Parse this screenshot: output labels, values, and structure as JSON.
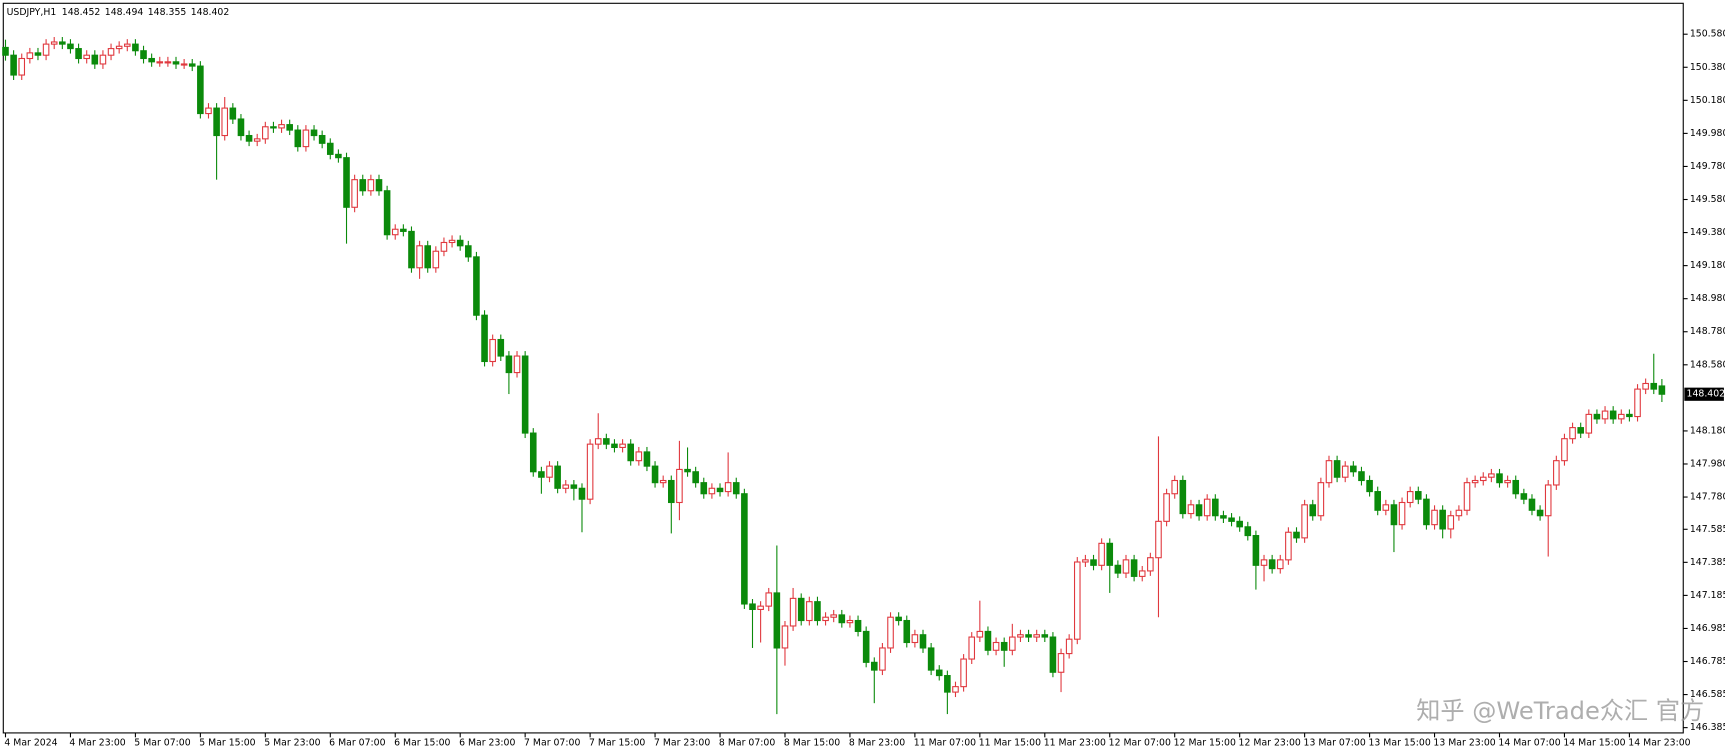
{
  "chart_data": {
    "type": "candlestick",
    "symbol": "USDJPY,H1",
    "watermark": "知乎 @WeTrade众汇 官方",
    "up_color": "#e0383e",
    "down_color": "#0b8a0b",
    "grid": false,
    "categories": [
      "4 Mar 2024",
      null,
      null,
      null,
      null,
      null,
      null,
      null,
      "4 Mar 23:00",
      null,
      null,
      null,
      null,
      null,
      null,
      null,
      "5 Mar 07:00",
      null,
      null,
      null,
      null,
      null,
      null,
      null,
      "5 Mar 15:00",
      null,
      null,
      null,
      null,
      null,
      null,
      null,
      "5 Mar 23:00",
      null,
      null,
      null,
      null,
      null,
      null,
      null,
      "6 Mar 07:00",
      null,
      null,
      null,
      null,
      null,
      null,
      null,
      "6 Mar 15:00",
      null,
      null,
      null,
      null,
      null,
      null,
      null,
      "6 Mar 23:00",
      null,
      null,
      null,
      null,
      null,
      null,
      null,
      "7 Mar 07:00",
      null,
      null,
      null,
      null,
      null,
      null,
      null,
      "7 Mar 15:00",
      null,
      null,
      null,
      null,
      null,
      null,
      null,
      "7 Mar 23:00",
      null,
      null,
      null,
      null,
      null,
      null,
      null,
      "8 Mar 07:00",
      null,
      null,
      null,
      null,
      null,
      null,
      null,
      "8 Mar 15:00",
      null,
      null,
      null,
      null,
      null,
      null,
      null,
      "8 Mar 23:00",
      null,
      null,
      null,
      null,
      null,
      null,
      null,
      "11 Mar 07:00",
      null,
      null,
      null,
      null,
      null,
      null,
      null,
      "11 Mar 15:00",
      null,
      null,
      null,
      null,
      null,
      null,
      null,
      "11 Mar 23:00",
      null,
      null,
      null,
      null,
      null,
      null,
      null,
      "12 Mar 07:00",
      null,
      null,
      null,
      null,
      null,
      null,
      null,
      "12 Mar 15:00",
      null,
      null,
      null,
      null,
      null,
      null,
      null,
      "12 Mar 23:00",
      null,
      null,
      null,
      null,
      null,
      null,
      null,
      "13 Mar 07:00",
      null,
      null,
      null,
      null,
      null,
      null,
      null,
      "13 Mar 15:00",
      null,
      null,
      null,
      null,
      null,
      null,
      null,
      "13 Mar 23:00",
      null,
      null,
      null,
      null,
      null,
      null,
      null,
      "14 Mar 07:00",
      null,
      null,
      null,
      null,
      null,
      null,
      null,
      "14 Mar 15:00",
      null,
      null,
      null,
      null,
      null,
      null,
      null,
      "14 Mar 23:00",
      null,
      null,
      null,
      null
    ],
    "open": [
      150.5,
      150.453,
      150.333,
      150.433,
      150.467,
      150.453,
      150.52,
      150.533,
      150.52,
      150.493,
      150.433,
      150.453,
      150.4,
      150.453,
      150.493,
      150.507,
      150.52,
      150.48,
      150.433,
      150.413,
      150.413,
      150.413,
      150.4,
      150.4,
      150.387,
      150.1,
      150.133,
      149.967,
      150.133,
      150.067,
      149.967,
      149.933,
      149.947,
      150.02,
      150.013,
      150.033,
      150.0,
      149.9,
      150.0,
      149.967,
      149.92,
      149.853,
      149.833,
      149.533,
      149.7,
      149.633,
      149.7,
      149.633,
      149.367,
      149.4,
      149.387,
      149.167,
      149.3,
      149.167,
      149.267,
      149.32,
      149.333,
      149.3,
      149.233,
      148.88,
      148.6,
      148.733,
      148.633,
      148.533,
      148.633,
      148.167,
      147.933,
      147.9,
      147.967,
      147.833,
      147.853,
      147.833,
      147.767,
      148.1,
      148.133,
      148.1,
      148.08,
      148.1,
      148.0,
      148.053,
      147.967,
      147.867,
      147.88,
      147.747,
      147.947,
      147.933,
      147.867,
      147.8,
      147.833,
      147.813,
      147.867,
      147.8,
      147.133,
      147.1,
      147.12,
      147.2,
      146.867,
      147.0,
      147.167,
      147.033,
      147.147,
      147.033,
      147.053,
      147.067,
      147.02,
      147.033,
      146.967,
      146.78,
      146.733,
      146.867,
      147.053,
      147.033,
      146.9,
      146.947,
      146.867,
      146.733,
      146.7,
      146.6,
      146.633,
      146.8,
      146.933,
      146.967,
      146.853,
      146.9,
      146.853,
      146.933,
      146.947,
      146.933,
      146.947,
      146.933,
      146.72,
      146.833,
      146.92,
      147.387,
      147.4,
      147.367,
      147.5,
      147.367,
      147.32,
      147.4,
      147.3,
      147.333,
      147.413,
      147.633,
      147.8,
      147.88,
      147.68,
      147.733,
      147.667,
      147.767,
      147.667,
      147.653,
      147.633,
      147.6,
      147.547,
      147.367,
      147.4,
      147.347,
      147.4,
      147.567,
      147.533,
      147.733,
      147.667,
      147.867,
      148.0,
      147.9,
      147.967,
      147.933,
      147.88,
      147.813,
      147.7,
      147.733,
      147.613,
      147.747,
      147.813,
      147.767,
      147.613,
      147.7,
      147.587,
      147.667,
      147.7,
      147.867,
      147.88,
      147.9,
      147.92,
      147.867,
      147.88,
      147.8,
      147.767,
      147.7,
      147.667,
      147.853,
      148.0,
      148.133,
      148.2,
      148.167,
      148.28,
      148.253,
      148.3,
      148.253,
      148.28,
      148.267,
      148.433,
      148.467,
      148.452
    ],
    "high": [
      150.547,
      150.483,
      150.463,
      150.497,
      150.497,
      150.55,
      150.563,
      150.563,
      150.55,
      150.523,
      150.483,
      150.483,
      150.483,
      150.523,
      150.537,
      150.55,
      150.55,
      150.51,
      150.463,
      150.443,
      150.443,
      150.443,
      150.43,
      150.43,
      150.417,
      150.163,
      150.163,
      150.2,
      150.163,
      150.097,
      149.997,
      149.977,
      150.05,
      150.05,
      150.063,
      150.063,
      150.03,
      150.03,
      150.03,
      149.997,
      149.95,
      149.883,
      149.863,
      149.73,
      149.73,
      149.73,
      149.73,
      149.663,
      149.43,
      149.43,
      149.417,
      149.33,
      149.33,
      149.297,
      149.35,
      149.363,
      149.363,
      149.33,
      149.263,
      148.91,
      148.763,
      148.763,
      148.663,
      148.663,
      148.663,
      148.197,
      147.963,
      147.997,
      147.997,
      147.883,
      147.883,
      147.863,
      148.13,
      148.287,
      148.163,
      148.13,
      148.13,
      148.13,
      148.083,
      148.083,
      147.997,
      147.91,
      147.91,
      148.12,
      148.08,
      147.963,
      147.897,
      147.863,
      147.863,
      148.05,
      147.897,
      147.83,
      147.163,
      147.15,
      147.23,
      147.487,
      147.03,
      147.23,
      147.197,
      147.177,
      147.177,
      147.083,
      147.097,
      147.097,
      147.063,
      147.063,
      146.997,
      146.81,
      146.897,
      147.083,
      147.083,
      147.063,
      146.977,
      146.977,
      146.897,
      146.763,
      146.73,
      146.663,
      146.83,
      146.963,
      147.153,
      146.997,
      146.93,
      146.93,
      147.013,
      146.977,
      146.977,
      146.977,
      146.977,
      146.963,
      146.863,
      146.95,
      147.417,
      147.43,
      147.43,
      147.53,
      147.53,
      147.397,
      147.43,
      147.43,
      147.363,
      147.443,
      148.147,
      147.83,
      147.91,
      147.91,
      147.763,
      147.763,
      147.797,
      147.797,
      147.697,
      147.683,
      147.663,
      147.63,
      147.577,
      147.43,
      147.43,
      147.43,
      147.597,
      147.597,
      147.763,
      147.763,
      147.897,
      148.03,
      148.03,
      147.997,
      147.997,
      147.963,
      147.91,
      147.843,
      147.763,
      147.763,
      147.777,
      147.843,
      147.843,
      147.797,
      147.73,
      147.73,
      147.697,
      147.73,
      147.897,
      147.91,
      147.93,
      147.95,
      147.95,
      147.91,
      147.91,
      147.83,
      147.797,
      147.73,
      147.883,
      148.03,
      148.163,
      148.23,
      148.23,
      148.31,
      148.31,
      148.33,
      148.33,
      148.31,
      148.31,
      148.463,
      148.497,
      148.647,
      148.494
    ],
    "low": [
      150.42,
      150.303,
      150.303,
      150.403,
      150.423,
      150.423,
      150.49,
      150.49,
      150.463,
      150.403,
      150.403,
      150.37,
      150.37,
      150.423,
      150.463,
      150.477,
      150.45,
      150.403,
      150.383,
      150.383,
      150.383,
      150.37,
      150.37,
      150.357,
      150.07,
      150.07,
      149.7,
      149.937,
      150.037,
      149.937,
      149.903,
      149.903,
      149.917,
      149.983,
      149.983,
      149.97,
      149.87,
      149.87,
      149.937,
      149.89,
      149.823,
      149.803,
      149.313,
      149.503,
      149.603,
      149.603,
      149.603,
      149.337,
      149.337,
      149.357,
      149.137,
      149.1,
      149.137,
      149.137,
      149.237,
      149.29,
      149.27,
      149.203,
      148.85,
      148.57,
      148.57,
      148.603,
      148.403,
      148.503,
      148.137,
      147.903,
      147.8,
      147.87,
      147.803,
      147.803,
      147.76,
      147.567,
      147.737,
      148.07,
      148.07,
      148.05,
      148.05,
      147.97,
      147.97,
      147.937,
      147.837,
      147.837,
      147.56,
      147.64,
      147.903,
      147.837,
      147.77,
      147.77,
      147.783,
      147.783,
      147.77,
      147.103,
      146.867,
      146.9,
      147.09,
      146.467,
      146.76,
      146.97,
      147.003,
      147.003,
      147.003,
      147.003,
      147.023,
      146.99,
      146.99,
      146.937,
      146.75,
      146.533,
      146.703,
      146.837,
      147.003,
      146.87,
      146.87,
      146.837,
      146.703,
      146.67,
      146.467,
      146.57,
      146.603,
      146.77,
      146.903,
      146.823,
      146.823,
      146.753,
      146.823,
      146.903,
      146.903,
      146.903,
      146.903,
      146.69,
      146.6,
      146.803,
      146.89,
      147.357,
      147.337,
      147.337,
      147.2,
      147.29,
      147.29,
      147.27,
      147.27,
      147.303,
      147.053,
      147.603,
      147.77,
      147.65,
      147.65,
      147.637,
      147.637,
      147.637,
      147.623,
      147.603,
      147.57,
      147.517,
      147.22,
      147.27,
      147.317,
      147.317,
      147.37,
      147.503,
      147.503,
      147.637,
      147.637,
      147.837,
      147.87,
      147.87,
      147.903,
      147.85,
      147.783,
      147.67,
      147.67,
      147.447,
      147.583,
      147.717,
      147.737,
      147.583,
      147.583,
      147.53,
      147.53,
      147.637,
      147.67,
      147.837,
      147.85,
      147.87,
      147.837,
      147.837,
      147.77,
      147.737,
      147.67,
      147.637,
      147.42,
      147.823,
      147.97,
      148.103,
      148.137,
      148.137,
      148.223,
      148.223,
      148.223,
      148.223,
      148.237,
      148.237,
      148.403,
      148.403,
      148.355
    ],
    "close": [
      150.453,
      150.333,
      150.433,
      150.467,
      150.453,
      150.52,
      150.533,
      150.52,
      150.493,
      150.433,
      150.453,
      150.4,
      150.453,
      150.493,
      150.507,
      150.52,
      150.48,
      150.433,
      150.413,
      150.413,
      150.413,
      150.4,
      150.4,
      150.387,
      150.1,
      150.133,
      149.967,
      150.133,
      150.067,
      149.967,
      149.933,
      149.947,
      150.02,
      150.013,
      150.033,
      150.0,
      149.9,
      150.0,
      149.967,
      149.92,
      149.853,
      149.833,
      149.533,
      149.7,
      149.633,
      149.7,
      149.633,
      149.367,
      149.4,
      149.387,
      149.167,
      149.3,
      149.167,
      149.267,
      149.32,
      149.333,
      149.3,
      149.233,
      148.88,
      148.6,
      148.733,
      148.633,
      148.533,
      148.633,
      148.167,
      147.933,
      147.9,
      147.967,
      147.833,
      147.853,
      147.833,
      147.767,
      148.1,
      148.133,
      148.1,
      148.08,
      148.1,
      148.0,
      148.053,
      147.967,
      147.867,
      147.88,
      147.747,
      147.947,
      147.933,
      147.867,
      147.8,
      147.833,
      147.813,
      147.867,
      147.8,
      147.133,
      147.1,
      147.12,
      147.2,
      146.867,
      147.0,
      147.167,
      147.033,
      147.147,
      147.033,
      147.053,
      147.067,
      147.02,
      147.033,
      146.967,
      146.78,
      146.733,
      146.867,
      147.053,
      147.033,
      146.9,
      146.947,
      146.867,
      146.733,
      146.7,
      146.6,
      146.633,
      146.8,
      146.933,
      146.967,
      146.853,
      146.9,
      146.853,
      146.933,
      146.947,
      146.933,
      146.947,
      146.933,
      146.72,
      146.833,
      146.92,
      147.387,
      147.4,
      147.367,
      147.5,
      147.367,
      147.32,
      147.4,
      147.3,
      147.333,
      147.413,
      147.633,
      147.8,
      147.88,
      147.68,
      147.733,
      147.667,
      147.767,
      147.667,
      147.653,
      147.633,
      147.6,
      147.547,
      147.367,
      147.4,
      147.347,
      147.4,
      147.567,
      147.533,
      147.733,
      147.667,
      147.867,
      148.0,
      147.9,
      147.967,
      147.933,
      147.88,
      147.813,
      147.7,
      147.733,
      147.613,
      147.747,
      147.813,
      147.767,
      147.613,
      147.7,
      147.587,
      147.667,
      147.7,
      147.867,
      147.88,
      147.9,
      147.92,
      147.867,
      147.88,
      147.8,
      147.767,
      147.7,
      147.667,
      147.853,
      148.0,
      148.133,
      148.2,
      148.167,
      148.28,
      148.253,
      148.3,
      148.253,
      148.28,
      148.267,
      148.433,
      148.467,
      148.433,
      148.402
    ],
    "ylim": [
      146.353,
      150.767
    ],
    "yticks": [
      {
        "value": 150.58,
        "label": "150.580"
      },
      {
        "value": 150.38,
        "label": "150.380"
      },
      {
        "value": 150.18,
        "label": "150.180"
      },
      {
        "value": 149.98,
        "label": "149.980"
      },
      {
        "value": 149.78,
        "label": "149.780"
      },
      {
        "value": 149.58,
        "label": "149.580"
      },
      {
        "value": 149.38,
        "label": "149.380"
      },
      {
        "value": 149.18,
        "label": "149.180"
      },
      {
        "value": 148.98,
        "label": "148.980"
      },
      {
        "value": 148.78,
        "label": "148.780"
      },
      {
        "value": 148.58,
        "label": "148.580"
      },
      {
        "value": 148.18,
        "label": "148.180"
      },
      {
        "value": 147.98,
        "label": "147.980"
      },
      {
        "value": 147.78,
        "label": "147.780"
      },
      147.585,
      147.385,
      147.185,
      146.985,
      146.785,
      146.585,
      146.385
    ]
  }
}
